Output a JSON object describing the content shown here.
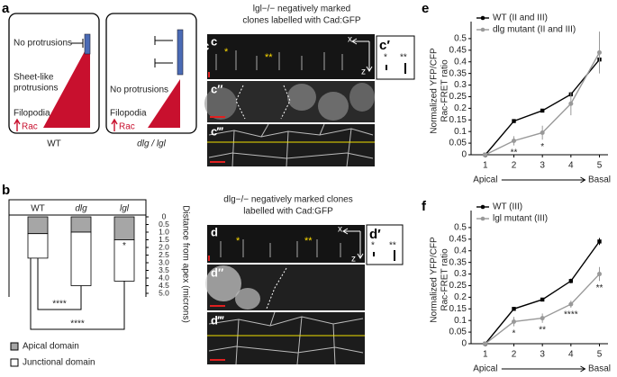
{
  "panel_letters": [
    "a",
    "b",
    "c",
    "d",
    "e",
    "f"
  ],
  "panel_a": {
    "wt": {
      "top": "No protrusions",
      "middle": [
        "Sheet-like",
        "protrusions"
      ],
      "bottom": "Filopodia",
      "rac": "Rac",
      "caption": "WT"
    },
    "mutant": {
      "middle": "No protrusions",
      "bottom": "Filopodia",
      "rac": "Rac",
      "caption": "dlg / lgl"
    }
  },
  "panel_c": {
    "title": [
      "lgl−/− negatively marked",
      "clones labelled with Cad:GFP"
    ],
    "rows": [
      "c",
      "c″",
      "c‴"
    ],
    "inset": "c′",
    "stars": [
      "*",
      "**"
    ],
    "axes": [
      "x",
      "z"
    ]
  },
  "panel_d": {
    "title": [
      "dlg−/− negatively marked clones",
      "labelled with Cad:GFP"
    ],
    "rows": [
      "d",
      "d″",
      "d‴"
    ],
    "inset": "d′",
    "stars": [
      "*",
      "**"
    ],
    "axes": [
      "x",
      "z"
    ]
  },
  "chart_data": [
    {
      "type": "bar",
      "categories": [
        "WT",
        "dlg",
        "lgl"
      ],
      "series": [
        {
          "name": "Apical domain",
          "color": "#a6a6a6",
          "values": [
            1.1,
            1.0,
            1.5
          ]
        },
        {
          "name": "Junctional domain",
          "color": "#ffffff",
          "values": [
            1.6,
            3.5,
            2.7
          ]
        }
      ],
      "ylim": [
        0,
        5
      ],
      "yticks": [
        0,
        0.5,
        {
          "value": 1,
          "label": "1.0"
        },
        1.5,
        {
          "value": 2,
          "label": "2.0"
        },
        2.5,
        {
          "value": 3,
          "label": "3.0"
        },
        3.5,
        {
          "value": 4,
          "label": "4.0"
        },
        4.5,
        {
          "value": 5,
          "label": "5.0"
        }
      ],
      "ylabel": "Distance from apex (microns)",
      "brackets": [
        {
          "text": "****",
          "from": 0,
          "to": 1
        },
        {
          "text": "****",
          "from": 0,
          "to": 2
        }
      ],
      "annotations": [
        {
          "text": "*",
          "category": 2
        }
      ]
    },
    {
      "type": "line",
      "x": [
        1,
        2,
        3,
        4,
        5
      ],
      "series": [
        {
          "name": "WT (II and III)",
          "color": "#000000",
          "values": [
            0,
            0.145,
            0.19,
            0.26,
            0.41
          ],
          "errors": [
            0,
            0.005,
            0.005,
            0.01,
            0.02
          ]
        },
        {
          "name": "dlg mutant (II and III)",
          "color": "#999999",
          "values": [
            0,
            0.06,
            0.095,
            0.22,
            0.44
          ],
          "errors": [
            0,
            0.02,
            0.03,
            0.05,
            0.09
          ]
        }
      ],
      "xlim": [
        0.5,
        5.3
      ],
      "xticks": [
        1,
        2,
        3,
        4,
        5
      ],
      "ylim": [
        0,
        0.55
      ],
      "yticks": [
        0,
        0.05,
        0.1,
        0.15,
        0.2,
        0.25,
        0.3,
        0.35,
        0.4,
        0.45,
        0.5
      ],
      "ylabel": [
        "Normalized YFP/CFP",
        "Rac-FRET ratio"
      ],
      "xlabel": [
        "Apical",
        "Basal"
      ],
      "annotations": [
        {
          "text": "**",
          "x": 2
        },
        {
          "text": "*",
          "x": 3
        }
      ]
    },
    {
      "type": "line",
      "x": [
        1,
        2,
        3,
        4,
        5
      ],
      "series": [
        {
          "name": "WT (III)",
          "color": "#000000",
          "values": [
            0,
            0.15,
            0.19,
            0.27,
            0.44
          ],
          "errors": [
            0,
            0.005,
            0.005,
            0.01,
            0.015
          ]
        },
        {
          "name": "lgl mutant (III)",
          "color": "#999999",
          "values": [
            0,
            0.095,
            0.11,
            0.17,
            0.3
          ],
          "errors": [
            0,
            0.02,
            0.02,
            0.015,
            0.03
          ]
        }
      ],
      "xlim": [
        0.5,
        5.3
      ],
      "xticks": [
        1,
        2,
        3,
        4,
        5
      ],
      "ylim": [
        0,
        0.55
      ],
      "yticks": [
        0,
        0.05,
        0.1,
        0.15,
        0.2,
        0.25,
        0.3,
        0.35,
        0.4,
        0.45,
        0.5
      ],
      "ylabel": [
        "Normalized YFP/CFP",
        "Rac-FRET ratio"
      ],
      "xlabel": [
        "Apical",
        "Basal"
      ],
      "annotations": [
        {
          "text": "*",
          "x": 2
        },
        {
          "text": "**",
          "x": 3
        },
        {
          "text": "****",
          "x": 4
        },
        {
          "text": "**",
          "x": 5
        }
      ]
    }
  ]
}
